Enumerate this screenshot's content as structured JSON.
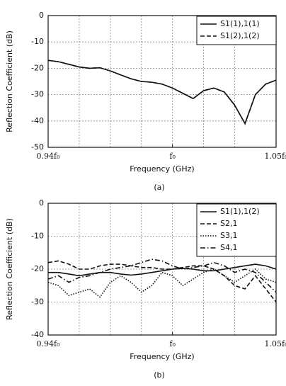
{
  "chart_data": [
    {
      "type": "line",
      "y_label": "Reflection Coefficient (dB)",
      "x_label": "Frequency (GHz)",
      "caption": "(a)",
      "xlim": [
        0.94,
        1.05
      ],
      "xticks": [
        {
          "value": 0.94,
          "label": "0.94f₀"
        },
        {
          "value": 1.0,
          "label": "f₀"
        },
        {
          "value": 1.05,
          "label": "1.05f₀"
        }
      ],
      "xgrid": [
        0.955,
        0.97,
        0.985,
        1.0,
        1.015,
        1.03
      ],
      "ylim": [
        -50,
        0
      ],
      "yticks": [
        0,
        -10,
        -20,
        -30,
        -40,
        -50
      ],
      "grid": true,
      "legend": "upper right",
      "x": [
        0.94,
        0.945,
        0.95,
        0.955,
        0.96,
        0.965,
        0.97,
        0.975,
        0.98,
        0.985,
        0.99,
        0.995,
        1.0,
        1.005,
        1.01,
        1.015,
        1.02,
        1.025,
        1.03,
        1.035,
        1.04,
        1.045,
        1.05
      ],
      "series": [
        {
          "name": "S1(1),1(1)",
          "color": "#111111",
          "dash": "solid",
          "values": [
            -17,
            -17.5,
            -18.5,
            -19.5,
            -20,
            -19.8,
            -21,
            -22.5,
            -24,
            -25,
            -25.3,
            -26,
            -27.5,
            -29.5,
            -31.5,
            -28.5,
            -27.5,
            -29,
            -34,
            -41,
            -30,
            -26,
            -24.5
          ]
        },
        {
          "name": "S1(2),1(2)",
          "color": "#111111",
          "dash": "dashed",
          "values": [
            -17,
            -17.5,
            -18.5,
            -19.5,
            -20,
            -19.8,
            -21,
            -22.5,
            -24,
            -25,
            -25.3,
            -26,
            -27.5,
            -29.5,
            -31.5,
            -28.5,
            -27.5,
            -29,
            -34,
            -41,
            -30,
            -26,
            -24.5
          ]
        }
      ]
    },
    {
      "type": "line",
      "y_label": "Reflection Coefficient (dB)",
      "x_label": "Frequency (GHz)",
      "caption": "(b)",
      "xlim": [
        0.94,
        1.05
      ],
      "xticks": [
        {
          "value": 0.94,
          "label": "0.94f₀"
        },
        {
          "value": 1.0,
          "label": "f₀"
        },
        {
          "value": 1.05,
          "label": "1.05f₀"
        }
      ],
      "xgrid": [
        0.955,
        0.97,
        0.985,
        1.0,
        1.015,
        1.03
      ],
      "ylim": [
        -40,
        0
      ],
      "yticks": [
        0,
        -10,
        -20,
        -30,
        -40
      ],
      "grid": true,
      "legend": "upper right",
      "x": [
        0.94,
        0.945,
        0.95,
        0.955,
        0.96,
        0.965,
        0.97,
        0.975,
        0.98,
        0.985,
        0.99,
        0.995,
        1.0,
        1.005,
        1.01,
        1.015,
        1.02,
        1.025,
        1.03,
        1.035,
        1.04,
        1.045,
        1.05
      ],
      "series": [
        {
          "name": "S1(1),1(2)",
          "color": "#111111",
          "dash": "solid",
          "values": [
            -21,
            -21,
            -21.5,
            -22,
            -21.5,
            -21,
            -21,
            -21.5,
            -21.8,
            -21.5,
            -21,
            -20.5,
            -20,
            -19.8,
            -20,
            -20.5,
            -20.5,
            -20,
            -19.5,
            -19,
            -18.5,
            -19,
            -20
          ]
        },
        {
          "name": "S2,1",
          "color": "#111111",
          "dash": "dashed",
          "values": [
            -18,
            -17.5,
            -18.5,
            -20,
            -20,
            -19,
            -18.5,
            -18.5,
            -19,
            -19.5,
            -19.5,
            -20,
            -20,
            -19.5,
            -19,
            -19,
            -20,
            -22,
            -25,
            -26,
            -22,
            -26,
            -30
          ]
        },
        {
          "name": "S3,1",
          "color": "#111111",
          "dash": "dotted",
          "values": [
            -24,
            -25,
            -28,
            -27,
            -26,
            -28.5,
            -24,
            -22,
            -24,
            -27,
            -25,
            -21,
            -22,
            -25,
            -23,
            -21,
            -20,
            -22,
            -24,
            -22,
            -20,
            -23,
            -24
          ]
        },
        {
          "name": "S4,1",
          "color": "#111111",
          "dash": "dashdot",
          "values": [
            -23,
            -22,
            -24,
            -22.5,
            -22,
            -21,
            -20,
            -19.5,
            -19,
            -18,
            -17,
            -17.5,
            -19,
            -20,
            -19.5,
            -19,
            -18,
            -19,
            -21,
            -20,
            -21,
            -24,
            -27
          ]
        }
      ]
    }
  ]
}
